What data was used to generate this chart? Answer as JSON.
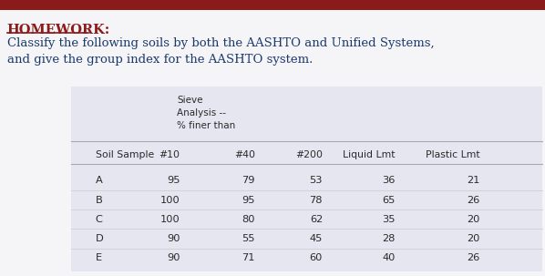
{
  "title_label": "HOMEWORK:",
  "subtitle_line1": "Classify the following soils by both the AASHTO and Unified Systems,",
  "subtitle_line2": "and give the group index for the AASHTO system.",
  "header_col0": "Soil Sample",
  "header_col1": "#10",
  "header_col2": "#40",
  "header_col3": "#200",
  "header_col4": "Liquid Lmt",
  "header_col5": "Plastic Lmt",
  "sieve_line1": "Sieve",
  "sieve_line2": "Analysis --",
  "sieve_line3": "% finer than",
  "rows": [
    [
      "A",
      95,
      79,
      53,
      36,
      21
    ],
    [
      "B",
      100,
      95,
      78,
      65,
      26
    ],
    [
      "C",
      100,
      80,
      62,
      35,
      20
    ],
    [
      "D",
      90,
      55,
      45,
      28,
      20
    ],
    [
      "E",
      90,
      71,
      60,
      40,
      26
    ]
  ],
  "top_bar_color": "#8b1a1a",
  "title_color": "#8b1a1a",
  "text_color": "#1a3a6e",
  "body_color": "#2a2a2a",
  "fig_bg": "#f5f5f8",
  "table_bg": "#e6e6f0"
}
